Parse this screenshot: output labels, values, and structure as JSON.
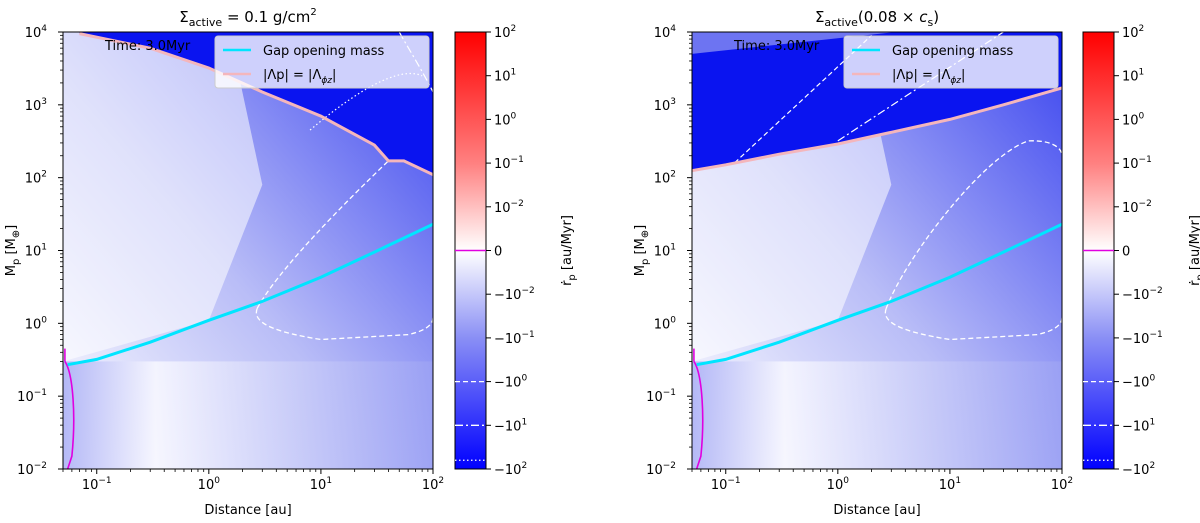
{
  "chart_data": [
    {
      "type": "heatmap",
      "title_main": "Σ",
      "title_sub": "active",
      "title_rest": " = 0.1 g/cm",
      "title_sup": "2",
      "xlabel": "Distance [au]",
      "ylabel": "M",
      "ylabel_sub": "p",
      "ylabel_unit": " [M",
      "ylabel_unit_sub": "⊕",
      "ylabel_end": "]",
      "xlim": [
        0.05,
        100
      ],
      "ylim": [
        0.01,
        10000
      ],
      "x_scale": "log",
      "y_scale": "log",
      "annotation": "Time: 3.0Myr",
      "legend": [
        "Gap opening mass",
        "|Λp| = |Λ",
        "ϕz",
        "|"
      ],
      "legend_placement": "top-right",
      "gap_opening_mass": {
        "x": [
          0.055,
          0.1,
          0.3,
          1,
          3,
          10,
          30,
          100
        ],
        "y": [
          0.27,
          0.32,
          0.55,
          1.1,
          2.0,
          4.3,
          9.5,
          23
        ]
      },
      "lambda_boundary": {
        "x": [
          0.07,
          0.3,
          1,
          3,
          10,
          30,
          40,
          55,
          100
        ],
        "y": [
          9500,
          6000,
          3200,
          1500,
          700,
          280,
          170,
          170,
          110
        ]
      },
      "colorbar": {
        "label": "ṙ",
        "label_sub": "p",
        "label_unit": " [au/Myr]",
        "range": [
          -100,
          100
        ],
        "scale": "symlog"
      }
    },
    {
      "type": "heatmap",
      "title_main": "Σ",
      "title_sub": "active",
      "title_rest": "(0.08 × ",
      "title_cs": "c",
      "title_cs_sub": "s",
      "title_end": ")",
      "xlabel": "Distance [au]",
      "ylabel": "M",
      "ylabel_sub": "p",
      "ylabel_unit": " [M",
      "ylabel_unit_sub": "⊕",
      "ylabel_end": "]",
      "xlim": [
        0.05,
        100
      ],
      "ylim": [
        0.01,
        10000
      ],
      "x_scale": "log",
      "y_scale": "log",
      "annotation": "Time: 3.0Myr",
      "legend": [
        "Gap opening mass",
        "|Λp| = |Λ",
        "ϕz",
        "|"
      ],
      "legend_placement": "top-right",
      "gap_opening_mass": {
        "x": [
          0.055,
          0.1,
          0.3,
          1,
          3,
          10,
          30,
          100
        ],
        "y": [
          0.27,
          0.32,
          0.55,
          1.1,
          2.0,
          4.3,
          9.5,
          23
        ]
      },
      "lambda_boundary": {
        "x": [
          0.05,
          0.1,
          0.3,
          1,
          3,
          10,
          30,
          100
        ],
        "y": [
          125,
          150,
          210,
          290,
          420,
          630,
          1000,
          1700
        ]
      },
      "colorbar": {
        "label": "ṙ",
        "label_sub": "p",
        "label_unit": " [au/Myr]",
        "range": [
          -100,
          100
        ],
        "scale": "symlog"
      }
    }
  ],
  "x_ticks": [
    {
      "base": "10",
      "exp": "−1",
      "value": 0.1
    },
    {
      "base": "10",
      "exp": "0",
      "value": 1
    },
    {
      "base": "10",
      "exp": "1",
      "value": 10
    },
    {
      "base": "10",
      "exp": "2",
      "value": 100
    }
  ],
  "y_ticks": [
    {
      "base": "10",
      "exp": "−2",
      "value": 0.01
    },
    {
      "base": "10",
      "exp": "−1",
      "value": 0.1
    },
    {
      "base": "10",
      "exp": "0",
      "value": 1
    },
    {
      "base": "10",
      "exp": "1",
      "value": 10
    },
    {
      "base": "10",
      "exp": "2",
      "value": 100
    },
    {
      "base": "10",
      "exp": "3",
      "value": 1000
    },
    {
      "base": "10",
      "exp": "4",
      "value": 10000
    }
  ],
  "cbar_ticks": [
    {
      "pre": "",
      "base": "10",
      "exp": "2",
      "value": 100
    },
    {
      "pre": "",
      "base": "10",
      "exp": "1",
      "value": 10
    },
    {
      "pre": "",
      "base": "10",
      "exp": "0",
      "value": 1
    },
    {
      "pre": "",
      "base": "10",
      "exp": "−1",
      "value": 0.1
    },
    {
      "pre": "",
      "base": "10",
      "exp": "−2",
      "value": 0.01
    },
    {
      "pre": "",
      "base": "0",
      "exp": "",
      "value": 0
    },
    {
      "pre": "−",
      "base": "10",
      "exp": "−2",
      "value": -0.01
    },
    {
      "pre": "−",
      "base": "10",
      "exp": "−1",
      "value": -0.1
    },
    {
      "pre": "−",
      "base": "10",
      "exp": "0",
      "value": -1
    },
    {
      "pre": "−",
      "base": "10",
      "exp": "1",
      "value": -10
    },
    {
      "pre": "−",
      "base": "10",
      "exp": "2",
      "value": -100
    }
  ],
  "colors": {
    "cyan": "#00e5ff",
    "pink": "#f4b6bc",
    "magenta": "#e000e0",
    "deep_blue": "#0a14f0",
    "deep_red": "#ff0000"
  }
}
